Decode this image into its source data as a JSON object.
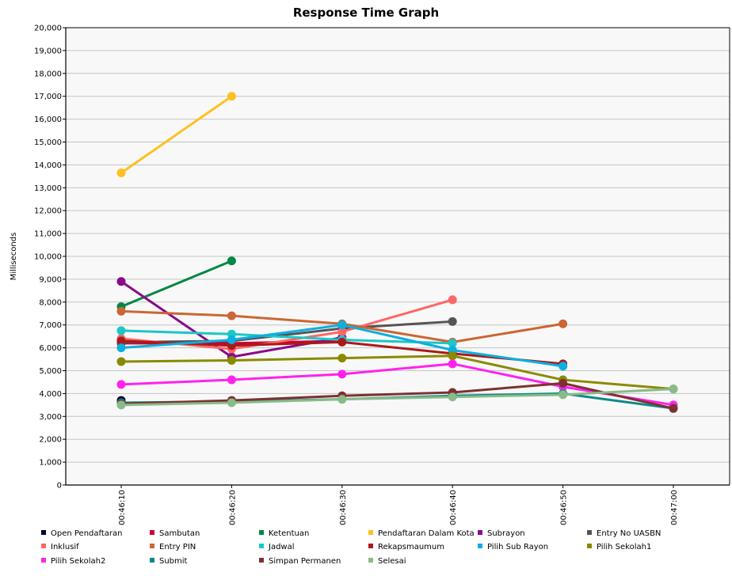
{
  "chart_data": {
    "type": "line",
    "title": "Response Time Graph",
    "xlabel": "",
    "ylabel": "Milliseconds",
    "x": [
      "00:46:10",
      "00:46:20",
      "00:46:30",
      "00:46:40",
      "00:46:50",
      "00:47:00"
    ],
    "ylim": [
      0,
      20000
    ],
    "y_ticks": [
      0,
      1000,
      2000,
      3000,
      4000,
      5000,
      6000,
      7000,
      8000,
      9000,
      10000,
      11000,
      12000,
      13000,
      14000,
      15000,
      16000,
      17000,
      18000,
      19000,
      20000
    ],
    "y_tick_labels": [
      "0",
      "1,000",
      "2,000",
      "3,000",
      "4,000",
      "5,000",
      "6,000",
      "7,000",
      "8,000",
      "9,000",
      "10,000",
      "11,000",
      "12,000",
      "13,000",
      "14,000",
      "15,000",
      "16,000",
      "17,000",
      "18,000",
      "19,000",
      "20,000"
    ],
    "grid": true,
    "legend_position": "bottom",
    "series": [
      {
        "name": "Open Pendaftaran",
        "color": "#000033",
        "values": [
          3700,
          null,
          null,
          null,
          null,
          null
        ]
      },
      {
        "name": "Sambutan",
        "color": "#cc0033",
        "values": [
          6200,
          6200,
          6300,
          null,
          null,
          null
        ]
      },
      {
        "name": "Ketentuan",
        "color": "#008844",
        "values": [
          7800,
          9800,
          null,
          null,
          null,
          null
        ]
      },
      {
        "name": "Pendaftaran Dalam Kota",
        "color": "#ffc020",
        "values": [
          13650,
          17000,
          null,
          null,
          null,
          null
        ]
      },
      {
        "name": "Subrayon",
        "color": "#8a0a8a",
        "values": [
          8900,
          5600,
          6450,
          null,
          null,
          null
        ]
      },
      {
        "name": "Entry No UASBN",
        "color": "#555555",
        "values": [
          6250,
          6300,
          6850,
          7150,
          null,
          null
        ]
      },
      {
        "name": "Inklusif",
        "color": "#ff6666",
        "values": [
          6400,
          5950,
          6700,
          8100,
          null,
          null
        ]
      },
      {
        "name": "Entry PIN",
        "color": "#cc6633",
        "values": [
          7600,
          7400,
          7050,
          6250,
          7050,
          null
        ]
      },
      {
        "name": "Jadwal",
        "color": "#1bc7c7",
        "values": [
          6750,
          6600,
          6350,
          6200,
          null,
          null
        ]
      },
      {
        "name": "Rekapsmaumum",
        "color": "#aa1a1a",
        "values": [
          6300,
          6100,
          6250,
          5750,
          5300,
          null
        ]
      },
      {
        "name": "Pilih Sub Rayon",
        "color": "#0ab0e0",
        "values": [
          6000,
          6350,
          7000,
          5900,
          5200,
          null
        ]
      },
      {
        "name": "Pilih Sekolah1",
        "color": "#8a8a00",
        "values": [
          5400,
          5450,
          5550,
          5650,
          4600,
          4200
        ]
      },
      {
        "name": "Pilih Sekolah2",
        "color": "#ff22ee",
        "values": [
          4400,
          4600,
          4850,
          5300,
          4300,
          3500
        ]
      },
      {
        "name": "Submit",
        "color": "#0a8a8a",
        "values": [
          3600,
          3650,
          3750,
          3900,
          4000,
          3350
        ]
      },
      {
        "name": "Simpan Permanen",
        "color": "#803030",
        "values": [
          3550,
          3700,
          3900,
          4050,
          4450,
          3350
        ]
      },
      {
        "name": "Selesai",
        "color": "#88bb88",
        "values": [
          3500,
          3600,
          3750,
          3850,
          3950,
          4200
        ]
      }
    ]
  }
}
